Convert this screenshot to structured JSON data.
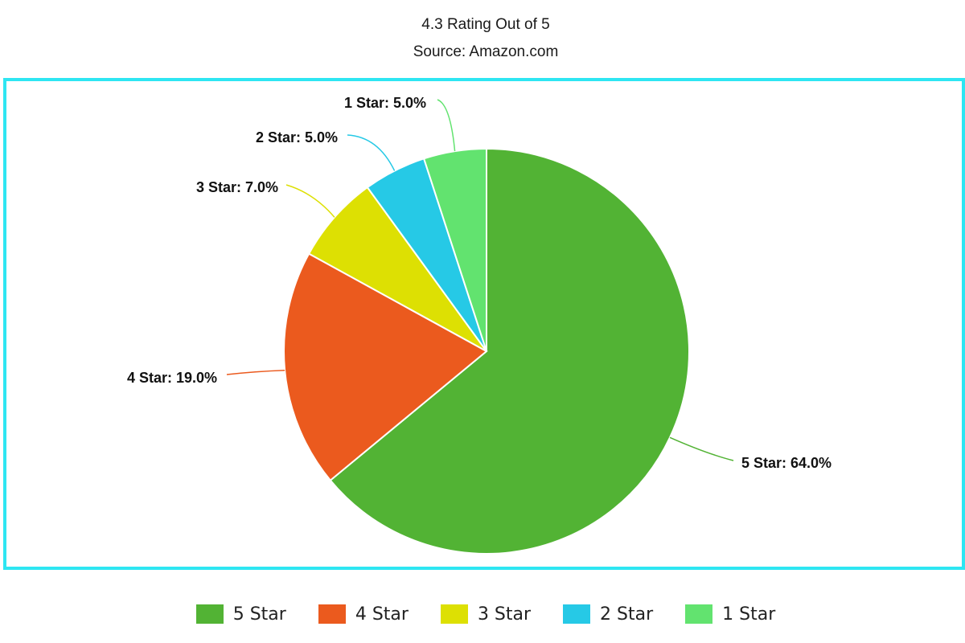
{
  "header": {
    "title": "4.3 Rating Out of 5",
    "subtitle": "Source: Amazon.com"
  },
  "chart_data": {
    "type": "pie",
    "title": "4.3 Rating Out of 5",
    "subtitle": "Source: Amazon.com",
    "categories": [
      "5 Star",
      "4 Star",
      "3 Star",
      "2 Star",
      "1 Star"
    ],
    "values": [
      64.0,
      19.0,
      7.0,
      5.0,
      5.0
    ],
    "unit": "%",
    "colors": [
      "#52b334",
      "#eb5a1e",
      "#dde003",
      "#26c9e6",
      "#62e36f"
    ],
    "data_labels": [
      "5 Star: 64.0%",
      "4 Star: 19.0%",
      "3 Star: 7.0%",
      "2 Star: 5.0%",
      "1 Star: 5.0%"
    ],
    "start_angle": "12 o'clock",
    "direction": "clockwise",
    "legend_position": "bottom",
    "frame_color": "#2ee6f2"
  }
}
